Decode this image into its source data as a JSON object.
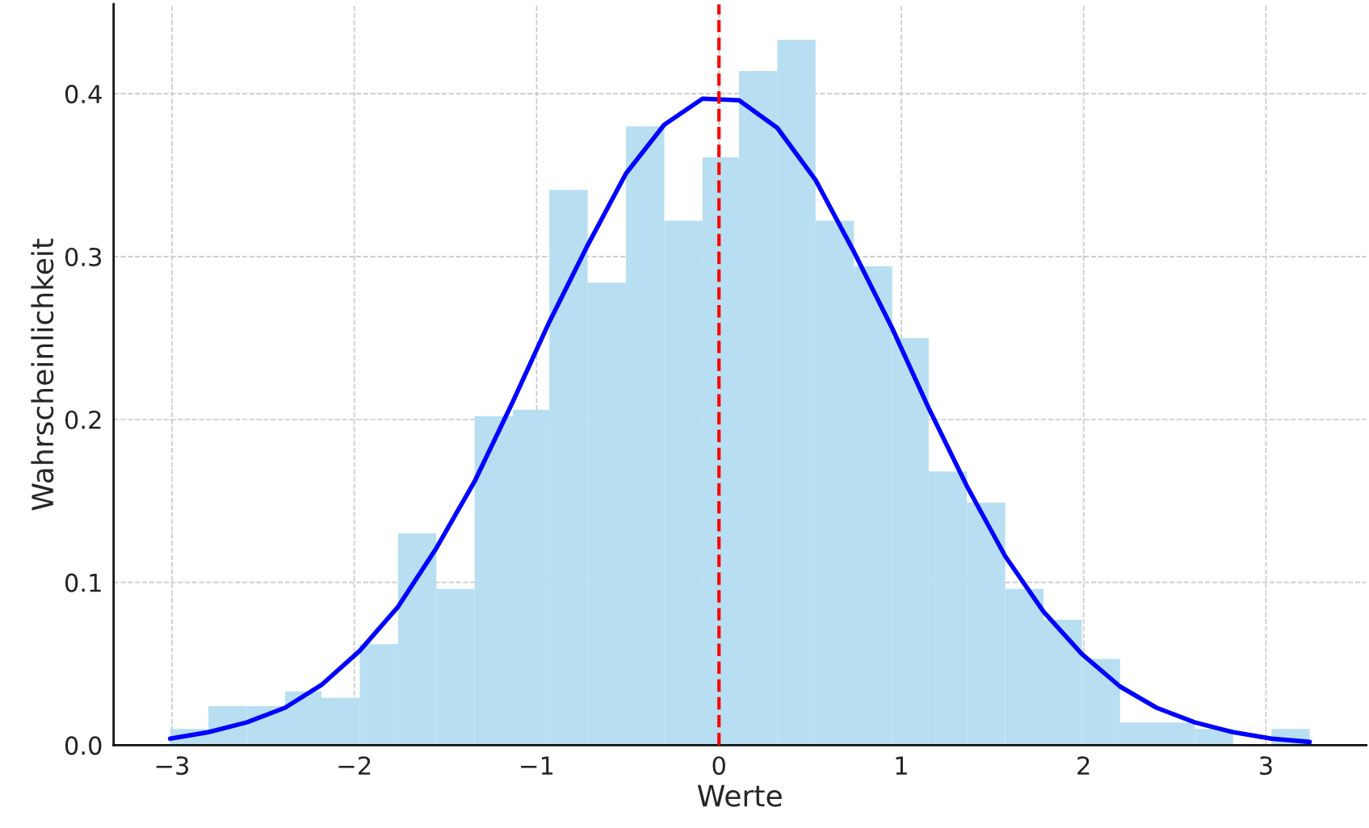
{
  "chart_data": {
    "type": "histogram",
    "xlabel": "Werte",
    "ylabel": "Wahrscheinlichkeit",
    "bins": [
      -3.01,
      -2.8,
      -2.59,
      -2.38,
      -2.18,
      -1.97,
      -1.76,
      -1.55,
      -1.34,
      -1.13,
      -0.93,
      -0.72,
      -0.51,
      -0.3,
      -0.09,
      0.11,
      0.32,
      0.53,
      0.74,
      0.95,
      1.15,
      1.36,
      1.57,
      1.78,
      1.99,
      2.2,
      2.4,
      2.61,
      2.82,
      3.03,
      3.24
    ],
    "values": [
      0.01,
      0.024,
      0.024,
      0.033,
      0.029,
      0.062,
      0.13,
      0.096,
      0.202,
      0.206,
      0.341,
      0.284,
      0.38,
      0.322,
      0.361,
      0.414,
      0.433,
      0.322,
      0.294,
      0.25,
      0.168,
      0.149,
      0.096,
      0.077,
      0.053,
      0.014,
      0.014,
      0.01,
      0,
      0.01
    ],
    "color": "#b7dff1",
    "series": [
      {
        "type": "line",
        "color": "#0000ff",
        "x": [
          -3.01,
          -2.8,
          -2.59,
          -2.38,
          -2.18,
          -1.97,
          -1.76,
          -1.55,
          -1.34,
          -1.13,
          -0.93,
          -0.72,
          -0.51,
          -0.3,
          -0.09,
          0.11,
          0.32,
          0.53,
          0.74,
          0.95,
          1.15,
          1.36,
          1.57,
          1.78,
          1.99,
          2.2,
          2.4,
          2.61,
          2.82,
          3.03,
          3.24
        ],
        "values": [
          0.004,
          0.008,
          0.014,
          0.023,
          0.037,
          0.058,
          0.085,
          0.121,
          0.162,
          0.211,
          0.26,
          0.307,
          0.351,
          0.381,
          0.397,
          0.396,
          0.379,
          0.347,
          0.303,
          0.256,
          0.207,
          0.159,
          0.116,
          0.082,
          0.056,
          0.036,
          0.023,
          0.014,
          0.008,
          0.004,
          0.002
        ]
      }
    ],
    "ref_lines": [
      {
        "axis": "x",
        "value": 0,
        "color": "#ff0000",
        "line_style": "dashed"
      }
    ],
    "xlim": [
      -3.32,
      3.55
    ],
    "ylim": [
      0,
      0.455
    ],
    "xticks": [
      {
        "value": -3,
        "label": "−3"
      },
      {
        "value": -2,
        "label": "−2"
      },
      {
        "value": -1,
        "label": "−1"
      },
      0,
      1,
      2,
      3
    ],
    "yticks": [
      {
        "value": 0,
        "label": "0.0"
      },
      0.1,
      0.2,
      0.3,
      0.4
    ],
    "grid": true
  }
}
